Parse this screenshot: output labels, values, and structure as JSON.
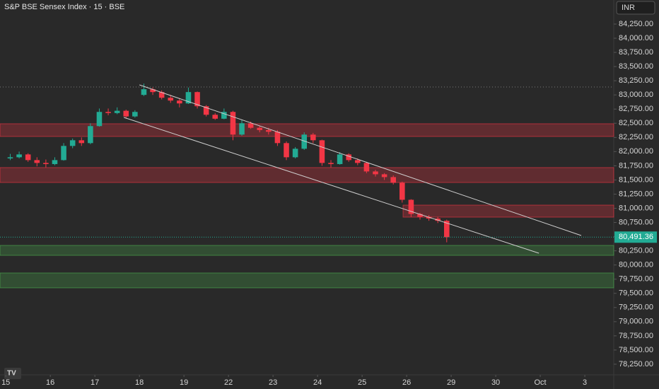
{
  "chart_data": {
    "type": "candlestick",
    "title": "S&P BSE Sensex Index · 15 · BSE",
    "currency": "INR",
    "up_color": "#22ab94",
    "down_color": "#f23645",
    "x": [
      0.1,
      0.3,
      0.5,
      0.7,
      0.9,
      1.1,
      1.3,
      1.5,
      1.7,
      1.9,
      2.1,
      2.3,
      2.5,
      2.7,
      2.9,
      3.1,
      3.3,
      3.5,
      3.7,
      3.9,
      4.1,
      4.3,
      4.5,
      4.7,
      4.9,
      5.1,
      5.3,
      5.5,
      5.7,
      5.9,
      6.1,
      6.3,
      6.5,
      6.7,
      6.9,
      7.1,
      7.3,
      7.5,
      7.7,
      7.9,
      8.1,
      8.3,
      8.5,
      8.7,
      8.9,
      9.1,
      9.3,
      9.5,
      9.7,
      9.9
    ],
    "open": [
      81880,
      81900,
      81950,
      81850,
      81800,
      81780,
      81850,
      82100,
      82200,
      82150,
      82450,
      82700,
      82680,
      82720,
      82620,
      83000,
      83100,
      83050,
      82950,
      82900,
      82850,
      83050,
      82800,
      82650,
      82580,
      82700,
      82300,
      82500,
      82420,
      82380,
      82350,
      82150,
      81900,
      82050,
      82300,
      82200,
      81800,
      81780,
      81950,
      81850,
      81800,
      81650,
      81600,
      81550,
      81450,
      81150,
      80900,
      80850,
      80820,
      80780
    ],
    "high": [
      81960,
      82000,
      81970,
      81900,
      81860,
      81900,
      82150,
      82230,
      82250,
      82500,
      82760,
      82760,
      82780,
      82740,
      82730,
      83200,
      83130,
      83080,
      83000,
      82940,
      83130,
      83060,
      82820,
      82680,
      82760,
      82720,
      82560,
      82530,
      82460,
      82420,
      82380,
      82180,
      82080,
      82340,
      82330,
      82210,
      81850,
      81990,
      81970,
      81880,
      81820,
      81680,
      81620,
      81580,
      81470,
      81160,
      80920,
      80880,
      80850,
      80800
    ],
    "low": [
      81850,
      81880,
      81820,
      81740,
      81720,
      81760,
      81840,
      82060,
      82100,
      82130,
      82440,
      82640,
      82660,
      82580,
      82600,
      82980,
      83000,
      82920,
      82860,
      82780,
      82840,
      82760,
      82620,
      82560,
      82570,
      82200,
      82280,
      82400,
      82340,
      82300,
      82100,
      81850,
      81880,
      82030,
      82150,
      81750,
      81720,
      81770,
      81820,
      81760,
      81620,
      81560,
      81500,
      81420,
      81100,
      80850,
      80800,
      80780,
      80740,
      80400
    ],
    "close": [
      81900,
      81950,
      81850,
      81800,
      81780,
      81850,
      82100,
      82200,
      82150,
      82450,
      82700,
      82680,
      82720,
      82620,
      82700,
      83100,
      83050,
      82950,
      82900,
      82850,
      83050,
      82800,
      82650,
      82580,
      82700,
      82300,
      82500,
      82420,
      82380,
      82350,
      82150,
      81900,
      82050,
      82300,
      82200,
      81800,
      81780,
      81950,
      81850,
      81800,
      81650,
      81600,
      81550,
      81450,
      81150,
      80900,
      80850,
      80820,
      80780,
      80491.36
    ],
    "xlim": [
      -0.13,
      13.65
    ],
    "xticks": [
      {
        "value": 0,
        "label": "15"
      },
      {
        "value": 1,
        "label": "16"
      },
      {
        "value": 2,
        "label": "17"
      },
      {
        "value": 3,
        "label": "18"
      },
      {
        "value": 4,
        "label": "19"
      },
      {
        "value": 5,
        "label": "22"
      },
      {
        "value": 6,
        "label": "23"
      },
      {
        "value": 7,
        "label": "24"
      },
      {
        "value": 8,
        "label": "25"
      },
      {
        "value": 9,
        "label": "26"
      },
      {
        "value": 10,
        "label": "29"
      },
      {
        "value": 11,
        "label": "30"
      },
      {
        "value": 12,
        "label": "Oct"
      },
      {
        "value": 13,
        "label": "3"
      }
    ],
    "ylim": [
      78062,
      84674
    ],
    "yticks": [
      {
        "value": 78250,
        "label": "78,250.00"
      },
      {
        "value": 78500,
        "label": "78,500.00"
      },
      {
        "value": 78750,
        "label": "78,750.00"
      },
      {
        "value": 79000,
        "label": "79,000.00"
      },
      {
        "value": 79250,
        "label": "79,250.00"
      },
      {
        "value": 79500,
        "label": "79,500.00"
      },
      {
        "value": 79750,
        "label": "79,750.00"
      },
      {
        "value": 80000,
        "label": "80,000.00"
      },
      {
        "value": 80250,
        "label": "80,250.00"
      },
      {
        "value": 80500,
        "label": "80,500.00"
      },
      {
        "value": 80750,
        "label": "80,750.00"
      },
      {
        "value": 81000,
        "label": "81,000.00"
      },
      {
        "value": 81250,
        "label": "81,250.00"
      },
      {
        "value": 81500,
        "label": "81,500.00"
      },
      {
        "value": 81750,
        "label": "81,750.00"
      },
      {
        "value": 82000,
        "label": "82,000.00"
      },
      {
        "value": 82250,
        "label": "82,250.00"
      },
      {
        "value": 82500,
        "label": "82,500.00"
      },
      {
        "value": 82750,
        "label": "82,750.00"
      },
      {
        "value": 83000,
        "label": "83,000.00"
      },
      {
        "value": 83250,
        "label": "83,250.00"
      },
      {
        "value": 83500,
        "label": "83,500.00"
      },
      {
        "value": 83750,
        "label": "83,750.00"
      },
      {
        "value": 84000,
        "label": "84,000.00"
      },
      {
        "value": 84250,
        "label": "84,250.00"
      }
    ],
    "zones": [
      {
        "low": 82267,
        "high": 82491,
        "x0": -0.13,
        "color": "#f23645"
      },
      {
        "low": 81455,
        "high": 81718,
        "x0": -0.13,
        "color": "#f23645"
      },
      {
        "low": 80844,
        "high": 81056,
        "x0": 8.92,
        "color": "#f23645"
      },
      {
        "low": 80170,
        "high": 80345,
        "x0": -0.13,
        "color": "#4caf50"
      },
      {
        "low": 79597,
        "high": 79859,
        "x0": -0.13,
        "color": "#4caf50"
      }
    ],
    "trendlines": [
      {
        "x": [
          3.0,
          12.92
        ],
        "y": [
          83177,
          80520
        ]
      },
      {
        "x": [
          2.65,
          11.97
        ],
        "y": [
          82603,
          80208
        ]
      }
    ],
    "ref_line": 83140,
    "last_price": {
      "value": 80491.36,
      "label": "80,491.36"
    }
  }
}
